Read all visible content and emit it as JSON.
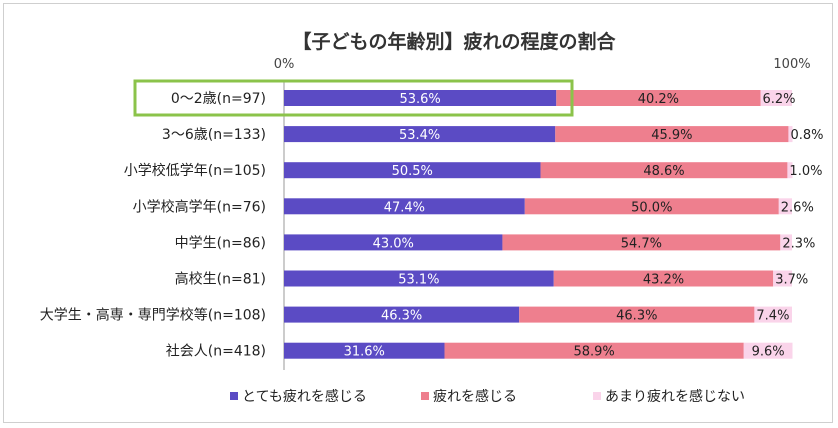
{
  "chart_data": {
    "type": "bar",
    "stacked": true,
    "orientation": "horizontal",
    "title": "【子どもの年齢別】疲れの程度の割合",
    "x_ticks": [
      "0%",
      "100%"
    ],
    "xlim": [
      0,
      100
    ],
    "categories": [
      "0～2歳(n=97)",
      "3～6歳(n=133)",
      "小学校低学年(n=105)",
      "小学校高学年(n=76)",
      "中学生(n=86)",
      "高校生(n=81)",
      "大学生・高専・専門学校等(n=108)",
      "社会人(n=418)"
    ],
    "series": [
      {
        "name": "とても疲れを感じる",
        "color": "#5b4bc4",
        "label_color": "#ffffff",
        "values": [
          53.6,
          53.4,
          50.5,
          47.4,
          43.0,
          53.1,
          46.3,
          31.6
        ]
      },
      {
        "name": "疲れを感じる",
        "color": "#ee7f8e",
        "label_color": "#222222",
        "values": [
          40.2,
          45.9,
          48.6,
          50.0,
          54.7,
          43.2,
          46.3,
          58.9
        ]
      },
      {
        "name": "あまり疲れを感じない",
        "color": "#fad4ea",
        "label_color": "#222222",
        "values": [
          6.2,
          0.8,
          1.0,
          2.6,
          2.3,
          3.7,
          7.4,
          9.6
        ]
      }
    ],
    "value_labels": [
      [
        "53.6%",
        "40.2%",
        "6.2%"
      ],
      [
        "53.4%",
        "45.9%",
        "0.8%"
      ],
      [
        "50.5%",
        "48.6%",
        "1.0%"
      ],
      [
        "47.4%",
        "50.0%",
        "2.6%"
      ],
      [
        "43.0%",
        "54.7%",
        "2.3%"
      ],
      [
        "53.1%",
        "43.2%",
        "3.7%"
      ],
      [
        "46.3%",
        "46.3%",
        "7.4%"
      ],
      [
        "31.6%",
        "58.9%",
        "9.6%"
      ]
    ],
    "highlight_category_index": 0,
    "highlight_color": "#8bc34a",
    "legend_position": "bottom",
    "grid": false
  }
}
